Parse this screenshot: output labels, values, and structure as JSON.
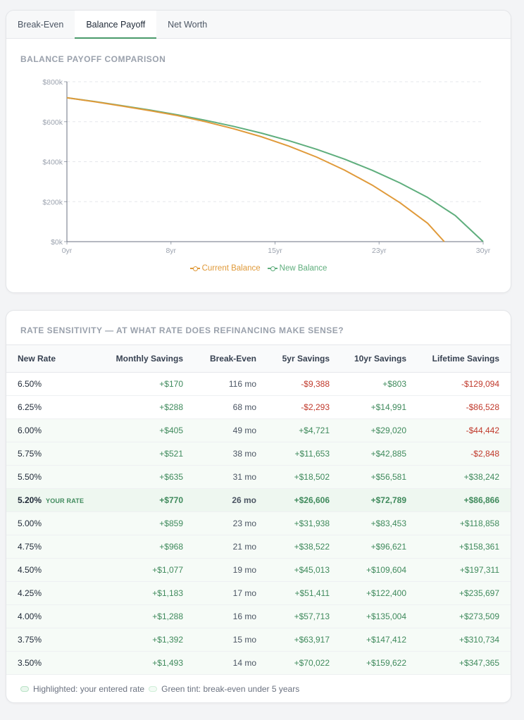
{
  "tabs": [
    {
      "label": "Break-Even",
      "active": false
    },
    {
      "label": "Balance Payoff",
      "active": true
    },
    {
      "label": "Net Worth",
      "active": false
    }
  ],
  "chart_card": {
    "title": "BALANCE PAYOFF COMPARISON"
  },
  "chart_data": {
    "type": "line",
    "title": "BALANCE PAYOFF COMPARISON",
    "xlabel": "",
    "ylabel": "",
    "x_ticks": [
      "0yr",
      "8yr",
      "15yr",
      "23yr",
      "30yr"
    ],
    "y_ticks": [
      "$0k",
      "$200k",
      "$400k",
      "$600k",
      "$800k"
    ],
    "xlim": [
      0,
      30
    ],
    "ylim": [
      0,
      800000
    ],
    "grid": true,
    "legend_position": "bottom",
    "series": [
      {
        "name": "Current Balance",
        "color": "#e09a3a",
        "x": [
          0,
          2,
          4,
          6,
          8,
          10,
          12,
          14,
          16,
          18,
          20,
          22,
          24,
          26,
          27.2
        ],
        "y": [
          720000,
          700000,
          678000,
          655000,
          630000,
          600000,
          565000,
          525000,
          478000,
          423000,
          358000,
          283000,
          195000,
          92000,
          0
        ]
      },
      {
        "name": "New Balance",
        "color": "#5fae7d",
        "x": [
          0,
          2,
          4,
          6,
          8,
          10,
          12,
          14,
          16,
          18,
          20,
          22,
          24,
          26,
          28,
          30
        ],
        "y": [
          720000,
          701000,
          680000,
          658000,
          634000,
          607000,
          577000,
          543000,
          505000,
          462000,
          413000,
          357000,
          294000,
          221000,
          130000,
          0
        ]
      }
    ]
  },
  "table_card": {
    "title": "RATE SENSITIVITY — AT WHAT RATE DOES REFINANCING MAKE SENSE?",
    "headers": {
      "rate": "New Rate",
      "monthly": "Monthly Savings",
      "breakeven": "Break-Even",
      "five": "5yr Savings",
      "ten": "10yr Savings",
      "life": "Lifetime Savings"
    },
    "your_rate_tag": "YOUR RATE",
    "rows": [
      {
        "rate": "6.50%",
        "monthly": "+$170",
        "breakeven": "116 mo",
        "five": "-$9,388",
        "ten": "+$803",
        "life": "-$129,094",
        "tint": false,
        "yours": false
      },
      {
        "rate": "6.25%",
        "monthly": "+$288",
        "breakeven": "68 mo",
        "five": "-$2,293",
        "ten": "+$14,991",
        "life": "-$86,528",
        "tint": false,
        "yours": false
      },
      {
        "rate": "6.00%",
        "monthly": "+$405",
        "breakeven": "49 mo",
        "five": "+$4,721",
        "ten": "+$29,020",
        "life": "-$44,442",
        "tint": true,
        "yours": false
      },
      {
        "rate": "5.75%",
        "monthly": "+$521",
        "breakeven": "38 mo",
        "five": "+$11,653",
        "ten": "+$42,885",
        "life": "-$2,848",
        "tint": true,
        "yours": false
      },
      {
        "rate": "5.50%",
        "monthly": "+$635",
        "breakeven": "31 mo",
        "five": "+$18,502",
        "ten": "+$56,581",
        "life": "+$38,242",
        "tint": true,
        "yours": false
      },
      {
        "rate": "5.20%",
        "monthly": "+$770",
        "breakeven": "26 mo",
        "five": "+$26,606",
        "ten": "+$72,789",
        "life": "+$86,866",
        "tint": true,
        "yours": true
      },
      {
        "rate": "5.00%",
        "monthly": "+$859",
        "breakeven": "23 mo",
        "five": "+$31,938",
        "ten": "+$83,453",
        "life": "+$118,858",
        "tint": true,
        "yours": false
      },
      {
        "rate": "4.75%",
        "monthly": "+$968",
        "breakeven": "21 mo",
        "five": "+$38,522",
        "ten": "+$96,621",
        "life": "+$158,361",
        "tint": true,
        "yours": false
      },
      {
        "rate": "4.50%",
        "monthly": "+$1,077",
        "breakeven": "19 mo",
        "five": "+$45,013",
        "ten": "+$109,604",
        "life": "+$197,311",
        "tint": true,
        "yours": false
      },
      {
        "rate": "4.25%",
        "monthly": "+$1,183",
        "breakeven": "17 mo",
        "five": "+$51,411",
        "ten": "+$122,400",
        "life": "+$235,697",
        "tint": true,
        "yours": false
      },
      {
        "rate": "4.00%",
        "monthly": "+$1,288",
        "breakeven": "16 mo",
        "five": "+$57,713",
        "ten": "+$135,004",
        "life": "+$273,509",
        "tint": true,
        "yours": false
      },
      {
        "rate": "3.75%",
        "monthly": "+$1,392",
        "breakeven": "15 mo",
        "five": "+$63,917",
        "ten": "+$147,412",
        "life": "+$310,734",
        "tint": true,
        "yours": false
      },
      {
        "rate": "3.50%",
        "monthly": "+$1,493",
        "breakeven": "14 mo",
        "five": "+$70,022",
        "ten": "+$159,622",
        "life": "+$347,365",
        "tint": true,
        "yours": false
      }
    ],
    "footnote": {
      "highlight_label": "Highlighted: your entered rate",
      "tint_label": "Green tint: break-even under 5 years"
    }
  },
  "colors": {
    "accent": "#4a9a6b",
    "positive": "#3f8a5c",
    "negative": "#c0392b",
    "current_line": "#e09a3a",
    "new_line": "#5fae7d"
  }
}
